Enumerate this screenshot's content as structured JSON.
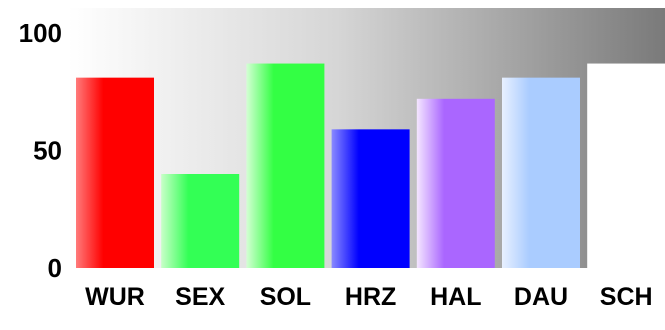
{
  "colors": {
    "plot_bg_left": "#ffffff",
    "plot_bg_right": "#7a7a7a",
    "text": "#000000"
  },
  "chart_data": {
    "type": "bar",
    "categories": [
      "WUR",
      "SEX",
      "SOL",
      "HRZ",
      "HAL",
      "DAU",
      "SCH"
    ],
    "values": [
      81,
      40,
      87,
      59,
      72,
      81,
      87
    ],
    "bar_colors": [
      {
        "light": "#ff7a7a",
        "main": "#ff0000"
      },
      {
        "light": "#c8ffc8",
        "main": "#33ff55"
      },
      {
        "light": "#d4ffd4",
        "main": "#33ff44"
      },
      {
        "light": "#8a8aff",
        "main": "#0000ff"
      },
      {
        "light": "#f4e6ff",
        "main": "#aa66ff"
      },
      {
        "light": "#e8f0ff",
        "main": "#aaccff"
      },
      {
        "light": "#ffffff",
        "main": "#ffffff"
      }
    ],
    "y_ticks": [
      "0",
      "50",
      "100"
    ],
    "y_tick_values": [
      0,
      50,
      100
    ],
    "ylim": [
      0,
      100
    ],
    "title": "",
    "xlabel": "",
    "ylabel": "",
    "grid": false,
    "legend": "none"
  }
}
